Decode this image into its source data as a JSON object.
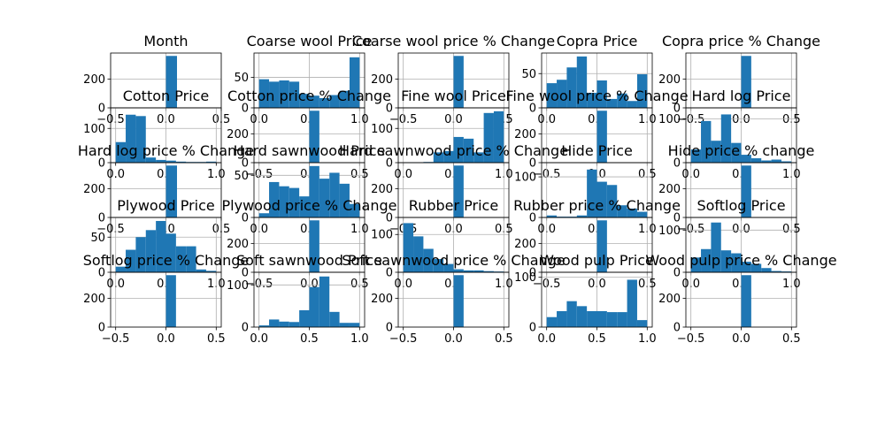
{
  "chart_data": [
    {
      "type": "bar",
      "title": "Month",
      "xticks": [
        "−0.5",
        "0.0",
        "0.5"
      ],
      "yticks": [
        "0",
        "200"
      ],
      "xlim": [
        -0.5,
        0.5
      ],
      "ylim": [
        0,
        380
      ],
      "bins": [
        {
          "x0": 0.0,
          "x1": 0.1,
          "h": 360
        }
      ]
    },
    {
      "type": "bar",
      "title": "Coarse wool Price",
      "xticks": [
        "0.0",
        "0.5",
        "1.0"
      ],
      "yticks": [
        "0",
        "50"
      ],
      "xlim": [
        -0.05,
        1.05
      ],
      "ylim": [
        0,
        90
      ],
      "bins": [
        {
          "x0": 0.0,
          "x1": 0.1,
          "h": 47
        },
        {
          "x0": 0.1,
          "x1": 0.2,
          "h": 43
        },
        {
          "x0": 0.2,
          "x1": 0.3,
          "h": 45
        },
        {
          "x0": 0.3,
          "x1": 0.4,
          "h": 43
        },
        {
          "x0": 0.4,
          "x1": 0.5,
          "h": 23
        },
        {
          "x0": 0.5,
          "x1": 0.6,
          "h": 20
        },
        {
          "x0": 0.6,
          "x1": 0.7,
          "h": 16
        },
        {
          "x0": 0.7,
          "x1": 0.8,
          "h": 21
        },
        {
          "x0": 0.8,
          "x1": 0.9,
          "h": 28
        },
        {
          "x0": 0.9,
          "x1": 1.0,
          "h": 83
        }
      ]
    },
    {
      "type": "bar",
      "title": "Coarse wool price % Change",
      "xticks": [
        "−0.5",
        "0.0",
        "0.5"
      ],
      "yticks": [
        "0",
        "200"
      ],
      "xlim": [
        -0.55,
        0.55
      ],
      "ylim": [
        0,
        380
      ],
      "bins": [
        {
          "x0": 0.0,
          "x1": 0.1,
          "h": 360
        }
      ]
    },
    {
      "type": "bar",
      "title": "Copra Price",
      "xticks": [
        "0.0",
        "0.5",
        "1.0"
      ],
      "yticks": [
        "0",
        "50"
      ],
      "xlim": [
        -0.05,
        1.05
      ],
      "ylim": [
        0,
        80
      ],
      "bins": [
        {
          "x0": 0.0,
          "x1": 0.1,
          "h": 36
        },
        {
          "x0": 0.1,
          "x1": 0.2,
          "h": 41
        },
        {
          "x0": 0.2,
          "x1": 0.3,
          "h": 59
        },
        {
          "x0": 0.3,
          "x1": 0.4,
          "h": 75
        },
        {
          "x0": 0.4,
          "x1": 0.5,
          "h": 22
        },
        {
          "x0": 0.5,
          "x1": 0.6,
          "h": 40
        },
        {
          "x0": 0.6,
          "x1": 0.7,
          "h": 13
        },
        {
          "x0": 0.7,
          "x1": 0.8,
          "h": 21
        },
        {
          "x0": 0.8,
          "x1": 0.9,
          "h": 10
        },
        {
          "x0": 0.9,
          "x1": 1.0,
          "h": 49
        }
      ]
    },
    {
      "type": "bar",
      "title": "Copra price % Change",
      "xticks": [
        "−0.5",
        "0.0",
        "0.5"
      ],
      "yticks": [
        "0",
        "200"
      ],
      "xlim": [
        -0.55,
        0.55
      ],
      "ylim": [
        0,
        380
      ],
      "bins": [
        {
          "x0": 0.0,
          "x1": 0.1,
          "h": 360
        }
      ]
    },
    {
      "type": "bar",
      "title": "Cotton Price",
      "xticks": [
        "0.0",
        "0.5",
        "1.0"
      ],
      "yticks": [
        "0",
        "100"
      ],
      "xlim": [
        -0.05,
        1.05
      ],
      "ylim": [
        0,
        160
      ],
      "bins": [
        {
          "x0": 0.0,
          "x1": 0.1,
          "h": 60
        },
        {
          "x0": 0.1,
          "x1": 0.2,
          "h": 140
        },
        {
          "x0": 0.2,
          "x1": 0.3,
          "h": 136
        },
        {
          "x0": 0.3,
          "x1": 0.4,
          "h": 15
        },
        {
          "x0": 0.4,
          "x1": 0.5,
          "h": 8
        },
        {
          "x0": 0.5,
          "x1": 0.6,
          "h": 6
        },
        {
          "x0": 0.6,
          "x1": 0.7,
          "h": 3
        },
        {
          "x0": 0.7,
          "x1": 0.8,
          "h": 2
        },
        {
          "x0": 0.8,
          "x1": 0.9,
          "h": 2
        },
        {
          "x0": 0.9,
          "x1": 1.0,
          "h": 3
        }
      ]
    },
    {
      "type": "bar",
      "title": "Cotton price % Change",
      "xticks": [
        "−0.5",
        "0.0",
        "0.5"
      ],
      "yticks": [
        "0",
        "200"
      ],
      "xlim": [
        -0.55,
        0.55
      ],
      "ylim": [
        0,
        380
      ],
      "bins": [
        {
          "x0": 0.0,
          "x1": 0.1,
          "h": 360
        }
      ]
    },
    {
      "type": "bar",
      "title": "Fine wool Price",
      "xticks": [
        "0.0",
        "0.5",
        "1.0"
      ],
      "yticks": [
        "0",
        "100"
      ],
      "xlim": [
        -0.05,
        1.05
      ],
      "ylim": [
        0,
        160
      ],
      "bins": [
        {
          "x0": 0.0,
          "x1": 0.1,
          "h": 1
        },
        {
          "x0": 0.1,
          "x1": 0.2,
          "h": 1
        },
        {
          "x0": 0.2,
          "x1": 0.3,
          "h": 2
        },
        {
          "x0": 0.3,
          "x1": 0.4,
          "h": 30
        },
        {
          "x0": 0.4,
          "x1": 0.5,
          "h": 34
        },
        {
          "x0": 0.5,
          "x1": 0.6,
          "h": 75
        },
        {
          "x0": 0.6,
          "x1": 0.7,
          "h": 70
        },
        {
          "x0": 0.7,
          "x1": 0.8,
          "h": 30
        },
        {
          "x0": 0.8,
          "x1": 0.9,
          "h": 145
        },
        {
          "x0": 0.9,
          "x1": 1.0,
          "h": 150
        }
      ]
    },
    {
      "type": "bar",
      "title": "Fine wool price % Change",
      "xticks": [
        "−0.5",
        "0.0",
        "0.5"
      ],
      "yticks": [
        "0",
        "200"
      ],
      "xlim": [
        -0.55,
        0.55
      ],
      "ylim": [
        0,
        380
      ],
      "bins": [
        {
          "x0": 0.0,
          "x1": 0.1,
          "h": 360
        }
      ]
    },
    {
      "type": "bar",
      "title": "Hard log Price",
      "xticks": [
        "0.0",
        "0.5",
        "1.0"
      ],
      "yticks": [
        "0",
        "100"
      ],
      "xlim": [
        -0.05,
        1.05
      ],
      "ylim": [
        0,
        125
      ],
      "bins": [
        {
          "x0": 0.0,
          "x1": 0.1,
          "h": 30
        },
        {
          "x0": 0.1,
          "x1": 0.2,
          "h": 95
        },
        {
          "x0": 0.2,
          "x1": 0.3,
          "h": 50
        },
        {
          "x0": 0.3,
          "x1": 0.4,
          "h": 110
        },
        {
          "x0": 0.4,
          "x1": 0.5,
          "h": 45
        },
        {
          "x0": 0.5,
          "x1": 0.6,
          "h": 18
        },
        {
          "x0": 0.6,
          "x1": 0.7,
          "h": 10
        },
        {
          "x0": 0.7,
          "x1": 0.8,
          "h": 5
        },
        {
          "x0": 0.8,
          "x1": 0.9,
          "h": 7
        },
        {
          "x0": 0.9,
          "x1": 1.0,
          "h": 3
        }
      ]
    },
    {
      "type": "bar",
      "title": "Hard log price % Change",
      "xticks": [
        "−0.5",
        "0.0",
        "0.5"
      ],
      "yticks": [
        "0",
        "200"
      ],
      "xlim": [
        -0.5,
        0.5
      ],
      "ylim": [
        0,
        380
      ],
      "bins": [
        {
          "x0": 0.0,
          "x1": 0.1,
          "h": 360
        }
      ]
    },
    {
      "type": "bar",
      "title": "Hard sawnwood Price",
      "xticks": [
        "0.0",
        "0.5",
        "1.0"
      ],
      "yticks": [
        "0",
        "50"
      ],
      "xlim": [
        -0.05,
        1.05
      ],
      "ylim": [
        0,
        65
      ],
      "bins": [
        {
          "x0": 0.0,
          "x1": 0.1,
          "h": 5
        },
        {
          "x0": 0.1,
          "x1": 0.2,
          "h": 42
        },
        {
          "x0": 0.2,
          "x1": 0.3,
          "h": 37
        },
        {
          "x0": 0.3,
          "x1": 0.4,
          "h": 35
        },
        {
          "x0": 0.4,
          "x1": 0.5,
          "h": 25
        },
        {
          "x0": 0.5,
          "x1": 0.6,
          "h": 61
        },
        {
          "x0": 0.6,
          "x1": 0.7,
          "h": 46
        },
        {
          "x0": 0.7,
          "x1": 0.8,
          "h": 53
        },
        {
          "x0": 0.8,
          "x1": 0.9,
          "h": 40
        },
        {
          "x0": 0.9,
          "x1": 1.0,
          "h": 16
        }
      ]
    },
    {
      "type": "bar",
      "title": "Hard sawnwood price % Change",
      "xticks": [
        "−0.5",
        "0.0",
        "0.5"
      ],
      "yticks": [
        "0",
        "200"
      ],
      "xlim": [
        -0.55,
        0.55
      ],
      "ylim": [
        0,
        380
      ],
      "bins": [
        {
          "x0": 0.0,
          "x1": 0.1,
          "h": 360
        }
      ]
    },
    {
      "type": "bar",
      "title": "Hide Price",
      "xticks": [
        "0.0",
        "0.5",
        "1.0"
      ],
      "yticks": [
        "0",
        "100"
      ],
      "xlim": [
        -0.05,
        1.05
      ],
      "ylim": [
        0,
        135
      ],
      "bins": [
        {
          "x0": 0.0,
          "x1": 0.1,
          "h": 5
        },
        {
          "x0": 0.1,
          "x1": 0.2,
          "h": 2
        },
        {
          "x0": 0.2,
          "x1": 0.3,
          "h": 2
        },
        {
          "x0": 0.3,
          "x1": 0.4,
          "h": 5
        },
        {
          "x0": 0.4,
          "x1": 0.5,
          "h": 118
        },
        {
          "x0": 0.5,
          "x1": 0.6,
          "h": 88
        },
        {
          "x0": 0.6,
          "x1": 0.7,
          "h": 80
        },
        {
          "x0": 0.7,
          "x1": 0.8,
          "h": 30
        },
        {
          "x0": 0.8,
          "x1": 0.9,
          "h": 22
        },
        {
          "x0": 0.9,
          "x1": 1.0,
          "h": 14
        }
      ]
    },
    {
      "type": "bar",
      "title": "Hide price % change",
      "xticks": [
        "−0.5",
        "0.0",
        "0.5"
      ],
      "yticks": [
        "0",
        "200"
      ],
      "xlim": [
        -0.55,
        0.55
      ],
      "ylim": [
        0,
        380
      ],
      "bins": [
        {
          "x0": 0.0,
          "x1": 0.1,
          "h": 360
        }
      ]
    },
    {
      "type": "bar",
      "title": "Plywood Price",
      "xticks": [
        "0.0",
        "0.5",
        "1.0"
      ],
      "yticks": [
        "0",
        "50"
      ],
      "xlim": [
        -0.05,
        1.05
      ],
      "ylim": [
        0,
        78
      ],
      "bins": [
        {
          "x0": 0.0,
          "x1": 0.1,
          "h": 8
        },
        {
          "x0": 0.1,
          "x1": 0.2,
          "h": 32
        },
        {
          "x0": 0.2,
          "x1": 0.3,
          "h": 50
        },
        {
          "x0": 0.3,
          "x1": 0.4,
          "h": 60
        },
        {
          "x0": 0.4,
          "x1": 0.5,
          "h": 73
        },
        {
          "x0": 0.5,
          "x1": 0.6,
          "h": 55
        },
        {
          "x0": 0.6,
          "x1": 0.7,
          "h": 37
        },
        {
          "x0": 0.7,
          "x1": 0.8,
          "h": 37
        },
        {
          "x0": 0.8,
          "x1": 0.9,
          "h": 4
        },
        {
          "x0": 0.9,
          "x1": 1.0,
          "h": 2
        }
      ]
    },
    {
      "type": "bar",
      "title": "Plywood price % Change",
      "xticks": [
        "−0.5",
        "0.0",
        "0.5"
      ],
      "yticks": [
        "0",
        "200"
      ],
      "xlim": [
        -0.55,
        0.55
      ],
      "ylim": [
        0,
        380
      ],
      "bins": [
        {
          "x0": 0.0,
          "x1": 0.1,
          "h": 360
        }
      ]
    },
    {
      "type": "bar",
      "title": "Rubber Price",
      "xticks": [
        "0.0",
        "0.5",
        "1.0"
      ],
      "yticks": [
        "0",
        "100"
      ],
      "xlim": [
        -0.05,
        1.05
      ],
      "ylim": [
        0,
        145
      ],
      "bins": [
        {
          "x0": 0.0,
          "x1": 0.1,
          "h": 130
        },
        {
          "x0": 0.1,
          "x1": 0.2,
          "h": 95
        },
        {
          "x0": 0.2,
          "x1": 0.3,
          "h": 62
        },
        {
          "x0": 0.3,
          "x1": 0.4,
          "h": 35
        },
        {
          "x0": 0.4,
          "x1": 0.5,
          "h": 22
        },
        {
          "x0": 0.5,
          "x1": 0.6,
          "h": 8
        },
        {
          "x0": 0.6,
          "x1": 0.7,
          "h": 5
        },
        {
          "x0": 0.7,
          "x1": 0.8,
          "h": 5
        },
        {
          "x0": 0.8,
          "x1": 0.9,
          "h": 3
        },
        {
          "x0": 0.9,
          "x1": 1.0,
          "h": 2
        }
      ]
    },
    {
      "type": "bar",
      "title": "Rubber price % Change",
      "xticks": [
        "−0.5",
        "0.0",
        "0.5"
      ],
      "yticks": [
        "0",
        "200"
      ],
      "xlim": [
        -0.55,
        0.55
      ],
      "ylim": [
        0,
        380
      ],
      "bins": [
        {
          "x0": 0.0,
          "x1": 0.1,
          "h": 360
        }
      ]
    },
    {
      "type": "bar",
      "title": "Softlog Price",
      "xticks": [
        "0.0",
        "0.5",
        "1.0"
      ],
      "yticks": [
        "0",
        "100"
      ],
      "xlim": [
        -0.05,
        1.05
      ],
      "ylim": [
        0,
        130
      ],
      "bins": [
        {
          "x0": 0.0,
          "x1": 0.1,
          "h": 35
        },
        {
          "x0": 0.1,
          "x1": 0.2,
          "h": 55
        },
        {
          "x0": 0.2,
          "x1": 0.3,
          "h": 118
        },
        {
          "x0": 0.3,
          "x1": 0.4,
          "h": 52
        },
        {
          "x0": 0.4,
          "x1": 0.5,
          "h": 45
        },
        {
          "x0": 0.5,
          "x1": 0.6,
          "h": 25
        },
        {
          "x0": 0.6,
          "x1": 0.7,
          "h": 20
        },
        {
          "x0": 0.7,
          "x1": 0.8,
          "h": 10
        },
        {
          "x0": 0.8,
          "x1": 0.9,
          "h": 3
        },
        {
          "x0": 0.9,
          "x1": 1.0,
          "h": 2
        }
      ]
    },
    {
      "type": "bar",
      "title": "Softlog price % Change",
      "xticks": [
        "−0.5",
        "0.0",
        "0.5"
      ],
      "yticks": [
        "0",
        "200"
      ],
      "xlim": [
        -0.55,
        0.55
      ],
      "ylim": [
        0,
        380
      ],
      "bins": [
        {
          "x0": 0.0,
          "x1": 0.1,
          "h": 360
        }
      ]
    },
    {
      "type": "bar",
      "title": "Soft sawnwood Price",
      "xticks": [
        "0.0",
        "0.5",
        "1.0"
      ],
      "yticks": [
        "0",
        "100"
      ],
      "xlim": [
        -0.05,
        1.05
      ],
      "ylim": [
        0,
        130
      ],
      "bins": [
        {
          "x0": 0.0,
          "x1": 0.1,
          "h": 4
        },
        {
          "x0": 0.1,
          "x1": 0.2,
          "h": 18
        },
        {
          "x0": 0.2,
          "x1": 0.3,
          "h": 13
        },
        {
          "x0": 0.3,
          "x1": 0.4,
          "h": 12
        },
        {
          "x0": 0.4,
          "x1": 0.5,
          "h": 40
        },
        {
          "x0": 0.5,
          "x1": 0.6,
          "h": 95
        },
        {
          "x0": 0.6,
          "x1": 0.7,
          "h": 120
        },
        {
          "x0": 0.7,
          "x1": 0.8,
          "h": 36
        },
        {
          "x0": 0.8,
          "x1": 0.9,
          "h": 10
        },
        {
          "x0": 0.9,
          "x1": 1.0,
          "h": 10
        }
      ]
    },
    {
      "type": "bar",
      "title": "Soft sawnwood price % Change",
      "xticks": [
        "−0.5",
        "0.0",
        "0.5"
      ],
      "yticks": [
        "0",
        "200"
      ],
      "xlim": [
        -0.55,
        0.55
      ],
      "ylim": [
        0,
        380
      ],
      "bins": [
        {
          "x0": 0.0,
          "x1": 0.1,
          "h": 360
        }
      ]
    },
    {
      "type": "bar",
      "title": "Wood pulp Price",
      "xticks": [
        "0.0",
        "0.5",
        "1.0"
      ],
      "yticks": [
        "0",
        "100"
      ],
      "xlim": [
        -0.05,
        1.05
      ],
      "ylim": [
        0,
        110
      ],
      "bins": [
        {
          "x0": 0.0,
          "x1": 0.1,
          "h": 20
        },
        {
          "x0": 0.1,
          "x1": 0.2,
          "h": 32
        },
        {
          "x0": 0.2,
          "x1": 0.3,
          "h": 52
        },
        {
          "x0": 0.3,
          "x1": 0.4,
          "h": 42
        },
        {
          "x0": 0.4,
          "x1": 0.5,
          "h": 32
        },
        {
          "x0": 0.5,
          "x1": 0.6,
          "h": 32
        },
        {
          "x0": 0.6,
          "x1": 0.7,
          "h": 30
        },
        {
          "x0": 0.7,
          "x1": 0.8,
          "h": 30
        },
        {
          "x0": 0.8,
          "x1": 0.9,
          "h": 95
        },
        {
          "x0": 0.9,
          "x1": 1.0,
          "h": 14
        }
      ]
    },
    {
      "type": "bar",
      "title": "Wood pulp price % Change",
      "xticks": [
        "−0.5",
        "0.0",
        "0.5"
      ],
      "yticks": [
        "0",
        "200"
      ],
      "xlim": [
        -0.55,
        0.55
      ],
      "ylim": [
        0,
        380
      ],
      "bins": [
        {
          "x0": 0.0,
          "x1": 0.1,
          "h": 360
        }
      ]
    }
  ],
  "colors": {
    "bar": "#1f77b4",
    "grid": "#b0b0b0",
    "axis": "#000000"
  }
}
